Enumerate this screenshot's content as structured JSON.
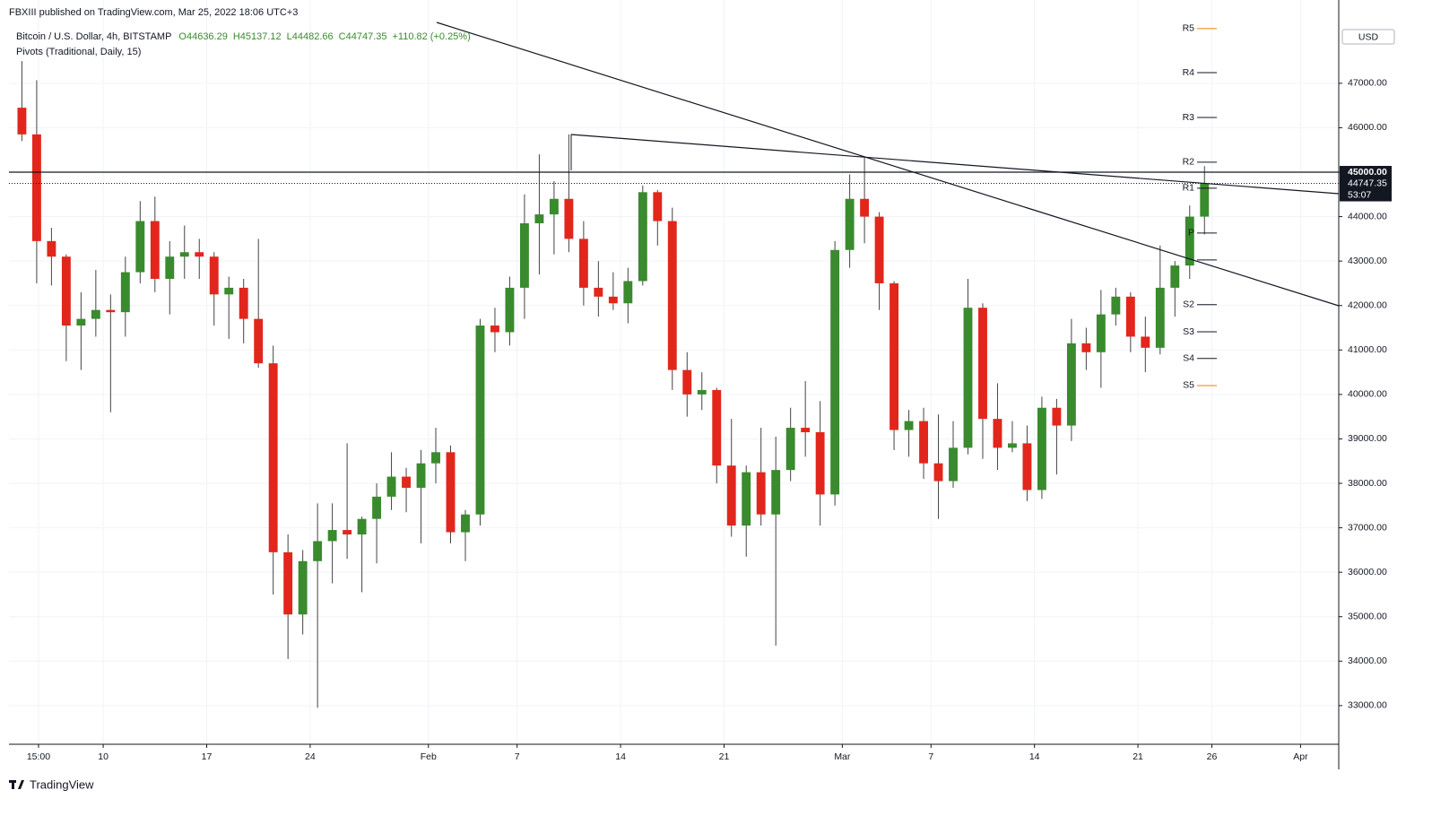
{
  "header": "FBXIII published on TradingView.com, Mar 25, 2022 18:06 UTC+3",
  "footer": "TradingView",
  "chart_data": {
    "type": "candlestick",
    "legend": {
      "symbol": "Bitcoin / U.S. Dollar, 4h, BITSTAMP",
      "open": "O44636.29",
      "high": "H45137.12",
      "low": "L44482.66",
      "close": "C44747.35",
      "change": "+110.82 (+0.25%)",
      "indicator": "Pivots (Traditional, Daily, 15)"
    },
    "currency": "USD",
    "up_color": "#3a8a2e",
    "down_color": "#e2261c",
    "wick_color": "#444444",
    "x": [
      "2022-01-04",
      "2022-01-05",
      "2022-01-06",
      "2022-01-07",
      "2022-01-08",
      "2022-01-09",
      "2022-01-10",
      "2022-01-11",
      "2022-01-12",
      "2022-01-13",
      "2022-01-14",
      "2022-01-15",
      "2022-01-16",
      "2022-01-17",
      "2022-01-18",
      "2022-01-19",
      "2022-01-20",
      "2022-01-21",
      "2022-01-22",
      "2022-01-23",
      "2022-01-24",
      "2022-01-25",
      "2022-01-26",
      "2022-01-27",
      "2022-01-28",
      "2022-01-29",
      "2022-01-30",
      "2022-01-31",
      "2022-02-01",
      "2022-02-02",
      "2022-02-03",
      "2022-02-04",
      "2022-02-05",
      "2022-02-06",
      "2022-02-07",
      "2022-02-08",
      "2022-02-09",
      "2022-02-10",
      "2022-02-11",
      "2022-02-12",
      "2022-02-13",
      "2022-02-14",
      "2022-02-15",
      "2022-02-16",
      "2022-02-17",
      "2022-02-18",
      "2022-02-19",
      "2022-02-20",
      "2022-02-21",
      "2022-02-22",
      "2022-02-23",
      "2022-02-24",
      "2022-02-25",
      "2022-02-26",
      "2022-02-27",
      "2022-02-28",
      "2022-03-01",
      "2022-03-02",
      "2022-03-03",
      "2022-03-04",
      "2022-03-05",
      "2022-03-06",
      "2022-03-07",
      "2022-03-08",
      "2022-03-09",
      "2022-03-10",
      "2022-03-11",
      "2022-03-12",
      "2022-03-13",
      "2022-03-14",
      "2022-03-15",
      "2022-03-16",
      "2022-03-17",
      "2022-03-18",
      "2022-03-19",
      "2022-03-20",
      "2022-03-21",
      "2022-03-22",
      "2022-03-23",
      "2022-03-24",
      "2022-03-25"
    ],
    "open": [
      46450,
      45850,
      43450,
      43100,
      41550,
      41700,
      41900,
      41850,
      42750,
      43900,
      42600,
      43100,
      43200,
      43100,
      42250,
      42400,
      41700,
      40700,
      36450,
      35050,
      36250,
      36700,
      36950,
      36850,
      37200,
      37700,
      38150,
      37900,
      38450,
      38700,
      36900,
      37300,
      41550,
      41400,
      42400,
      43850,
      44050,
      44400,
      43500,
      42400,
      42200,
      42050,
      42550,
      44550,
      43900,
      40550,
      40000,
      40100,
      38400,
      37050,
      38250,
      37300,
      38300,
      39250,
      39150,
      37750,
      43250,
      44400,
      44000,
      42500,
      39200,
      39400,
      38450,
      38050,
      38800,
      41950,
      39450,
      38800,
      38900,
      37850,
      39700,
      39300,
      41150,
      40950,
      41800,
      42200,
      41300,
      41050,
      42400,
      42900,
      44000
    ],
    "high": [
      47500,
      47070,
      43750,
      43150,
      42300,
      42800,
      42250,
      43100,
      44350,
      44450,
      43450,
      43800,
      43500,
      43200,
      42650,
      42600,
      43500,
      41100,
      36850,
      36500,
      37550,
      37550,
      38900,
      37250,
      38000,
      38700,
      38350,
      38750,
      39250,
      38850,
      37400,
      41700,
      41950,
      42650,
      44500,
      45400,
      44800,
      45850,
      43900,
      43000,
      42750,
      42850,
      44700,
      44600,
      44200,
      40950,
      40500,
      40150,
      39450,
      38400,
      39250,
      39050,
      39700,
      40300,
      39850,
      43450,
      44950,
      45350,
      44100,
      42550,
      39650,
      39700,
      39550,
      39400,
      42600,
      42050,
      40250,
      39400,
      39300,
      39950,
      39900,
      41700,
      41500,
      42350,
      42400,
      42300,
      41750,
      43350,
      43000,
      44250,
      45137
    ],
    "low": [
      45700,
      42500,
      42450,
      40750,
      40550,
      41300,
      39600,
      41300,
      42500,
      42300,
      41800,
      42600,
      42600,
      41550,
      41250,
      41150,
      40600,
      35500,
      34050,
      34600,
      32950,
      35750,
      36300,
      35550,
      36200,
      37400,
      37350,
      36650,
      38000,
      36650,
      36250,
      37050,
      40950,
      41100,
      41700,
      42700,
      43150,
      43200,
      42000,
      41750,
      41900,
      41600,
      42450,
      43350,
      40100,
      39500,
      39650,
      38000,
      36800,
      36350,
      37050,
      34350,
      38050,
      38600,
      37050,
      37500,
      42850,
      43400,
      41900,
      38750,
      38600,
      38100,
      37200,
      37900,
      38650,
      38550,
      38300,
      38700,
      37600,
      37650,
      38200,
      38950,
      40550,
      40150,
      41550,
      40950,
      40500,
      40900,
      41750,
      42600,
      43600
    ],
    "close": [
      45850,
      43450,
      43100,
      41550,
      41700,
      41900,
      41850,
      42750,
      43900,
      42600,
      43100,
      43200,
      43100,
      42250,
      42400,
      41700,
      40700,
      36450,
      35050,
      36250,
      36700,
      36950,
      36850,
      37200,
      37700,
      38150,
      37900,
      38450,
      38700,
      36900,
      37300,
      41550,
      41400,
      42400,
      43850,
      44050,
      44400,
      43500,
      42400,
      42200,
      42050,
      42550,
      44550,
      43900,
      40550,
      40000,
      40100,
      38400,
      37050,
      38250,
      37300,
      38300,
      39250,
      39150,
      37750,
      43250,
      44400,
      44000,
      42500,
      39200,
      39400,
      38450,
      38050,
      38800,
      41950,
      39450,
      38800,
      38900,
      37850,
      39700,
      39300,
      41150,
      40950,
      41800,
      42200,
      41300,
      41050,
      42400,
      42900,
      44000,
      44747.35
    ],
    "xlim": [
      "2022-01-03T15:00",
      "2022-04-03T14:00"
    ],
    "xticks": [
      {
        "value": "2022-01-05T15:00",
        "label": "15:00"
      },
      {
        "value": "2022-01-10",
        "label": "10"
      },
      {
        "value": "2022-01-17",
        "label": "17"
      },
      {
        "value": "2022-01-24",
        "label": "24"
      },
      {
        "value": "2022-02-01",
        "label": "Feb"
      },
      {
        "value": "2022-02-07",
        "label": "7"
      },
      {
        "value": "2022-02-14",
        "label": "14"
      },
      {
        "value": "2022-02-21",
        "label": "21"
      },
      {
        "value": "2022-03-01",
        "label": "Mar"
      },
      {
        "value": "2022-03-07",
        "label": "7"
      },
      {
        "value": "2022-03-14",
        "label": "14"
      },
      {
        "value": "2022-03-21",
        "label": "21"
      },
      {
        "value": "2022-03-26",
        "label": "26"
      },
      {
        "value": "2022-04-01",
        "label": "Apr"
      }
    ],
    "ylim": [
      32130,
      48470
    ],
    "yticks": [
      {
        "value": 33000,
        "label": "33000.00"
      },
      {
        "value": 34000,
        "label": "34000.00"
      },
      {
        "value": 35000,
        "label": "35000.00"
      },
      {
        "value": 36000,
        "label": "36000.00"
      },
      {
        "value": 37000,
        "label": "37000.00"
      },
      {
        "value": 38000,
        "label": "38000.00"
      },
      {
        "value": 39000,
        "label": "39000.00"
      },
      {
        "value": 40000,
        "label": "40000.00"
      },
      {
        "value": 41000,
        "label": "41000.00"
      },
      {
        "value": 42000,
        "label": "42000.00"
      },
      {
        "value": 43000,
        "label": "43000.00"
      },
      {
        "value": 44000,
        "label": "44000.00"
      },
      {
        "value": 45000,
        "label": "45000.00"
      },
      {
        "value": 46000,
        "label": "46000.00"
      },
      {
        "value": 47000,
        "label": "47000.00"
      }
    ],
    "grid": true,
    "pivots": [
      {
        "name": "R5",
        "value": 48230,
        "color": "#f57c00"
      },
      {
        "name": "R4",
        "value": 47240,
        "color": "#131722"
      },
      {
        "name": "R3",
        "value": 46230,
        "color": "#131722"
      },
      {
        "name": "R2",
        "value": 45225,
        "color": "#131722"
      },
      {
        "name": "R1",
        "value": 44640,
        "color": "#131722"
      },
      {
        "name": "P",
        "value": 43630,
        "color": "#131722"
      },
      {
        "name": null,
        "value": 43025,
        "color": "#131722"
      },
      {
        "name": "S2",
        "value": 42020,
        "color": "#131722"
      },
      {
        "name": "S3",
        "value": 41410,
        "color": "#131722"
      },
      {
        "name": "S4",
        "value": 40810,
        "color": "#131722"
      },
      {
        "name": "S5",
        "value": 40200,
        "color": "#f57c00"
      }
    ],
    "pivot_start": "2022-03-25",
    "pivot_end": "2022-03-26T08:00",
    "hline": {
      "value": 45000,
      "label": "45000.00"
    },
    "price_line": {
      "value": 44747.35,
      "label": "44747.35",
      "countdown": "53:07"
    }
  }
}
